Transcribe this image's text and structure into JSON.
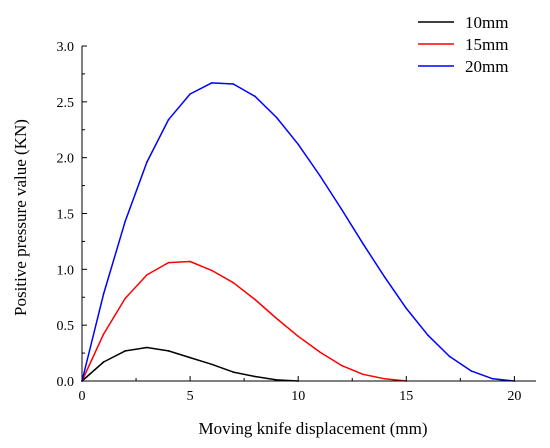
{
  "chart_data": {
    "type": "line",
    "title": "",
    "xlabel": "Moving knife displacement (mm)",
    "ylabel": "Positive pressure value (KN)",
    "xlim": [
      0,
      21
    ],
    "ylim": [
      0,
      3.0
    ],
    "xticks": [
      "0",
      "5",
      "10",
      "15",
      "20"
    ],
    "yticks": [
      "0.0",
      "0.5",
      "1.0",
      "1.5",
      "2.0",
      "2.5",
      "3.0"
    ],
    "grid": false,
    "legend_position": "top-right",
    "series": [
      {
        "name": "10mm",
        "color": "#000000",
        "x": [
          0,
          1,
          2,
          3,
          4,
          5,
          6,
          7,
          8,
          9,
          10
        ],
        "y": [
          0,
          0.17,
          0.27,
          0.3,
          0.27,
          0.21,
          0.15,
          0.08,
          0.04,
          0.01,
          0
        ]
      },
      {
        "name": "15mm",
        "color": "#ff0000",
        "x": [
          0,
          1,
          2,
          3,
          4,
          5,
          6,
          7,
          8,
          9,
          10,
          11,
          12,
          13,
          14,
          15
        ],
        "y": [
          0,
          0.42,
          0.74,
          0.95,
          1.06,
          1.07,
          0.99,
          0.88,
          0.73,
          0.56,
          0.4,
          0.26,
          0.14,
          0.06,
          0.02,
          0
        ]
      },
      {
        "name": "20mm",
        "color": "#0000ff",
        "x": [
          0,
          1,
          2,
          3,
          4,
          5,
          6,
          7,
          8,
          9,
          10,
          11,
          12,
          13,
          14,
          15,
          16,
          17,
          18,
          19,
          20
        ],
        "y": [
          0,
          0.78,
          1.43,
          1.96,
          2.34,
          2.57,
          2.67,
          2.66,
          2.55,
          2.36,
          2.12,
          1.84,
          1.54,
          1.23,
          0.93,
          0.65,
          0.41,
          0.22,
          0.09,
          0.02,
          0
        ]
      }
    ]
  }
}
